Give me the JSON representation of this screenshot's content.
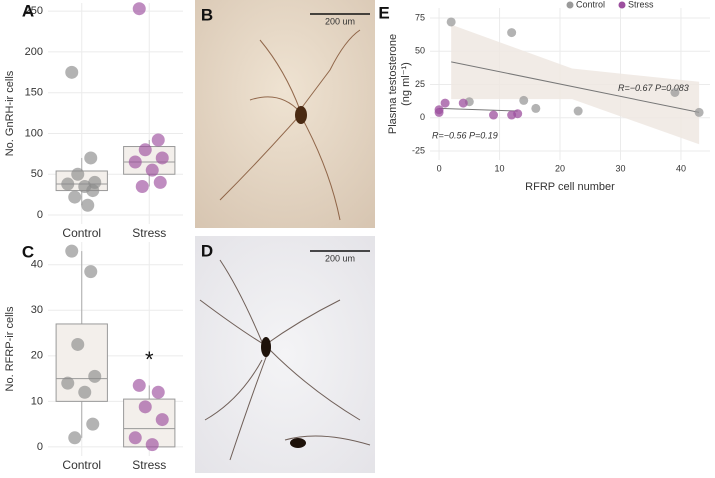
{
  "chart_data": [
    {
      "type": "box",
      "panel_label": "A",
      "ylabel": "No. GnRH-ir cells",
      "categories": [
        "Control",
        "Stress"
      ],
      "colors": [
        "#8a8a8a",
        "#9c4f9e"
      ],
      "boxes": [
        {
          "min": 12,
          "q1": 30,
          "median": 38,
          "q3": 54,
          "max": 70
        },
        {
          "min": 35,
          "q1": 50,
          "median": 65,
          "q3": 84,
          "max": 92
        }
      ],
      "points": [
        [
          175,
          70,
          50,
          40,
          38,
          35,
          30,
          22,
          12
        ],
        [
          253,
          92,
          80,
          70,
          65,
          55,
          40,
          35
        ]
      ],
      "ylim": [
        -11,
        260
      ],
      "yticks": [
        0,
        50,
        100,
        150,
        200,
        250
      ],
      "grid": true
    },
    {
      "type": "box",
      "panel_label": "C",
      "ylabel": "No. RFRP-ir cells",
      "categories": [
        "Control",
        "Stress"
      ],
      "colors": [
        "#8a8a8a",
        "#9c4f9e"
      ],
      "boxes": [
        {
          "min": 2,
          "q1": 10,
          "median": 15,
          "q3": 27,
          "max": 43
        },
        {
          "min": 0,
          "q1": 0,
          "median": 4,
          "q3": 10.5,
          "max": 13.5
        }
      ],
      "points": [
        [
          43,
          38.5,
          22.5,
          15.5,
          14,
          12,
          5,
          2
        ],
        [
          13.5,
          12,
          8.8,
          6,
          2,
          0.5
        ]
      ],
      "annotations": [
        "*"
      ],
      "ylim": [
        -2,
        45
      ],
      "yticks": [
        0,
        10,
        20,
        30,
        40
      ],
      "grid": true
    },
    {
      "type": "scatter",
      "panel_label": "E",
      "xlabel": "RFRP cell number",
      "ylabel": [
        "Plasma testosterone",
        "(ng ml⁻¹)"
      ],
      "legend": "top-right",
      "series": [
        {
          "name": "Control",
          "color": "#9a9a9a",
          "x": [
            2,
            12,
            5,
            14,
            16,
            23,
            39,
            43
          ],
          "y": [
            72,
            64,
            12,
            13,
            7,
            5,
            19,
            4
          ]
        },
        {
          "name": "Stress",
          "color": "#9c4f9e",
          "x": [
            0,
            0,
            1,
            4,
            9,
            12,
            13
          ],
          "y": [
            4,
            6,
            11,
            11,
            2,
            2,
            3
          ]
        }
      ],
      "fits": [
        {
          "color": "#777777",
          "x": [
            2,
            43
          ],
          "y": [
            42,
            4
          ],
          "band": {
            "x": [
              2,
              22,
              43
            ],
            "upper": [
              70,
              37,
              27
            ],
            "lower": [
              14,
              14,
              -20
            ],
            "color": "#efe8e2"
          },
          "label": "R=−0.67 P=0.083"
        },
        {
          "color": "#777777",
          "x": [
            0,
            13
          ],
          "y": [
            7,
            5
          ],
          "label": "R=−0.56 P=0.19"
        }
      ],
      "xlim": [
        -1.5,
        44.8
      ],
      "xticks": [
        0,
        10,
        20,
        30,
        40
      ],
      "ylim": [
        -31.8,
        82.5
      ],
      "yticks": [
        -25,
        0,
        25,
        50,
        75
      ],
      "grid": true
    }
  ],
  "images": [
    {
      "panel_label": "B",
      "scale_bar": "200 um"
    },
    {
      "panel_label": "D",
      "scale_bar": "200 um"
    }
  ]
}
